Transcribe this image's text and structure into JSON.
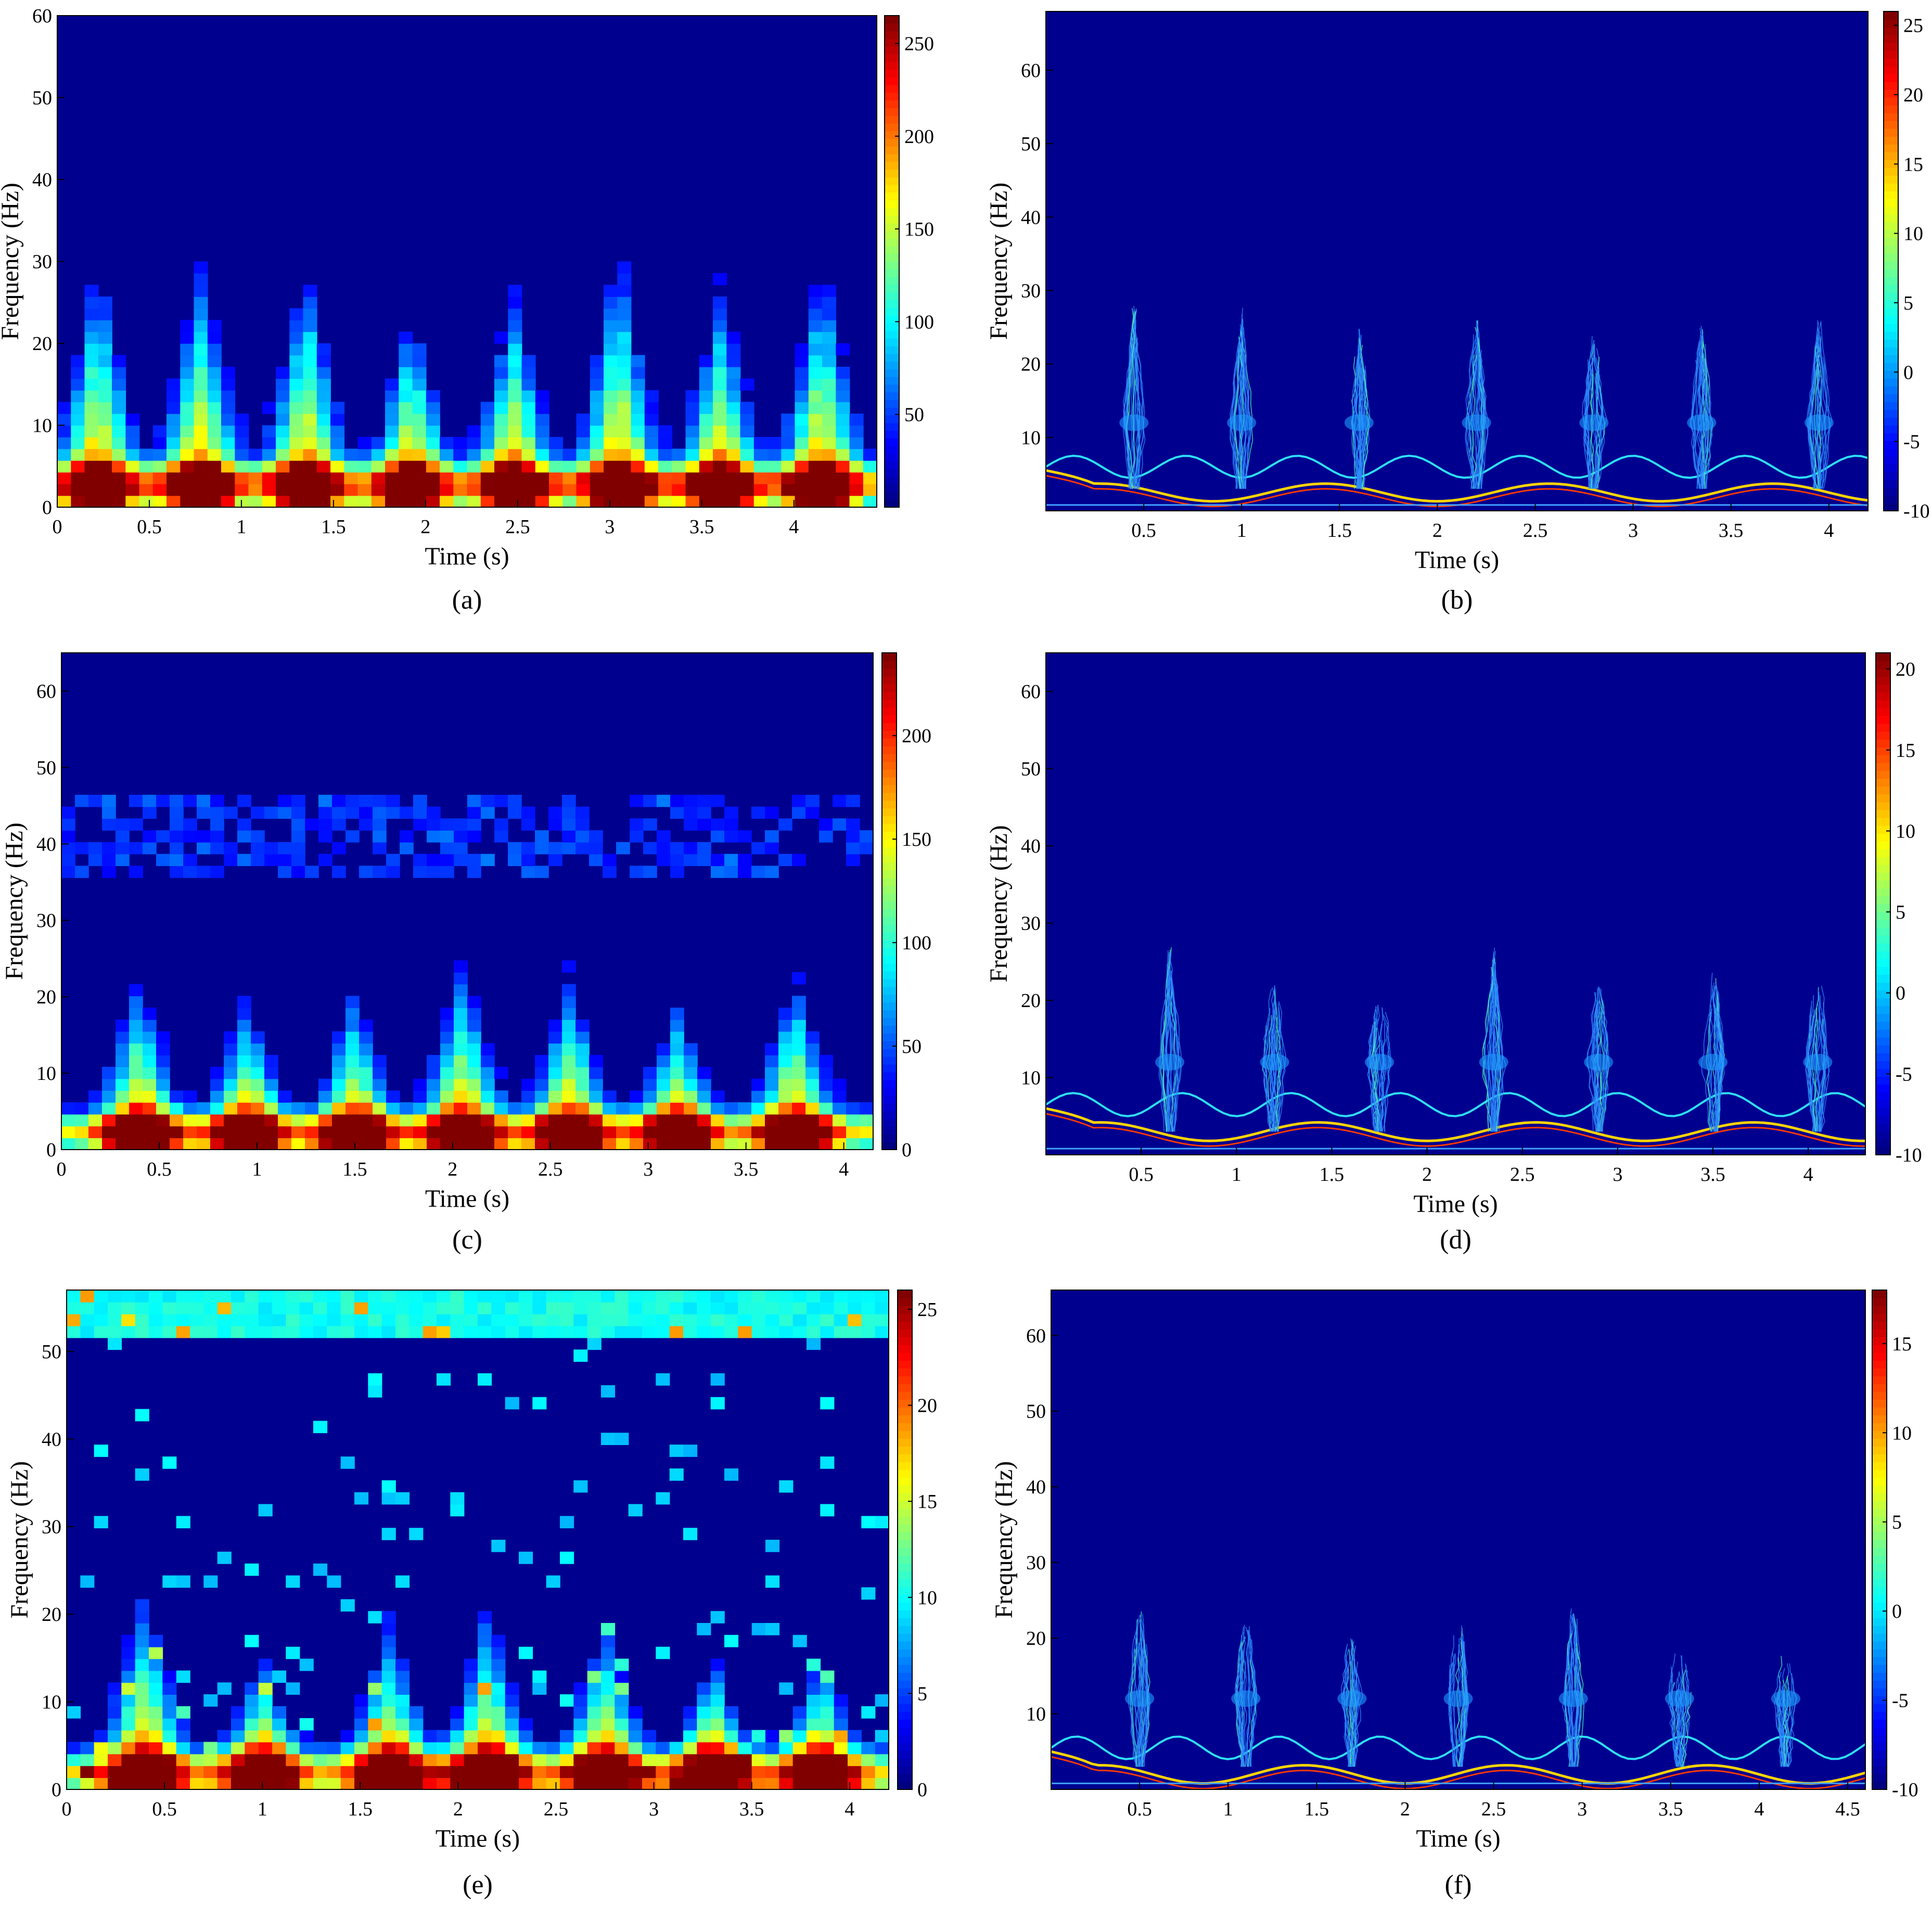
{
  "colors": {
    "colormap": "jet",
    "background": "#00008f",
    "axis": "#000000"
  },
  "chart_data": [
    {
      "id": "a",
      "type": "heatmap",
      "panel_label": "(a)",
      "style": "stft",
      "xlabel": "Time (s)",
      "ylabel": "Frequency (Hz)",
      "xlim": [
        0,
        4.45
      ],
      "ylim": [
        0,
        60
      ],
      "xticks": [
        "0",
        "0.5",
        "1",
        "1.5",
        "2",
        "2.5",
        "3",
        "3.5",
        "4"
      ],
      "yticks": [
        "0",
        "10",
        "20",
        "30",
        "40",
        "50",
        "60"
      ],
      "colorbar": {
        "min": 0,
        "max": 265,
        "ticks": [
          "50",
          "100",
          "150",
          "200",
          "250"
        ]
      },
      "pulse_times": [
        0.22,
        0.78,
        1.35,
        1.92,
        2.48,
        3.05,
        3.6,
        4.15
      ],
      "pulse_peak_freq": [
        28,
        28,
        28,
        22,
        24,
        30,
        24,
        28
      ],
      "baseline_freq": 3,
      "peak_value": 255
    },
    {
      "id": "b",
      "type": "heatmap",
      "panel_label": "(b)",
      "style": "sparse",
      "xlabel": "Time (s)",
      "ylabel": "Frequency (Hz)",
      "xlim": [
        0,
        4.2
      ],
      "ylim": [
        0,
        68
      ],
      "xticks": [
        "0.5",
        "1",
        "1.5",
        "2",
        "2.5",
        "3",
        "3.5",
        "4"
      ],
      "yticks": [
        "10",
        "20",
        "30",
        "40",
        "50",
        "60"
      ],
      "colorbar": {
        "min": -10,
        "max": 26,
        "ticks": [
          "-10",
          "-5",
          "0",
          "5",
          "10",
          "15",
          "20",
          "25"
        ]
      },
      "pulse_times": [
        0.45,
        1.0,
        1.6,
        2.2,
        2.8,
        3.35,
        3.95
      ],
      "pulse_peak_freq": [
        28,
        28,
        25,
        26,
        24,
        26,
        26
      ],
      "baseline_freq": 2.5,
      "peak_value": 25
    },
    {
      "id": "c",
      "type": "heatmap",
      "panel_label": "(c)",
      "style": "stft",
      "xlabel": "Time (s)",
      "ylabel": "Frequency (Hz)",
      "xlim": [
        0,
        4.15
      ],
      "ylim": [
        0,
        65
      ],
      "xticks": [
        "0",
        "0.5",
        "1",
        "1.5",
        "2",
        "2.5",
        "3",
        "3.5",
        "4"
      ],
      "yticks": [
        "0",
        "10",
        "20",
        "30",
        "40",
        "50",
        "60"
      ],
      "colorbar": {
        "min": 0,
        "max": 240,
        "ticks": [
          "0",
          "50",
          "100",
          "150",
          "200"
        ]
      },
      "pulse_times": [
        0.4,
        0.95,
        1.5,
        2.05,
        2.6,
        3.15,
        3.75
      ],
      "pulse_peak_freq": [
        20,
        17,
        18,
        22,
        20,
        16,
        20
      ],
      "baseline_freq": 2.5,
      "peak_value": 230
    },
    {
      "id": "d",
      "type": "heatmap",
      "panel_label": "(d)",
      "style": "sparse",
      "xlabel": "Time (s)",
      "ylabel": "Frequency (Hz)",
      "xlim": [
        0,
        4.3
      ],
      "ylim": [
        0,
        65
      ],
      "xticks": [
        "0.5",
        "1",
        "1.5",
        "2",
        "2.5",
        "3",
        "3.5",
        "4"
      ],
      "yticks": [
        "10",
        "20",
        "30",
        "40",
        "50",
        "60"
      ],
      "colorbar": {
        "min": -10,
        "max": 21,
        "ticks": [
          "-10",
          "-5",
          "0",
          "5",
          "10",
          "15",
          "20"
        ]
      },
      "pulse_times": [
        0.65,
        1.2,
        1.75,
        2.35,
        2.9,
        3.5,
        4.05
      ],
      "pulse_peak_freq": [
        27,
        22,
        20,
        27,
        22,
        24,
        22
      ],
      "baseline_freq": 3,
      "peak_value": 20
    },
    {
      "id": "e",
      "type": "heatmap",
      "panel_label": "(e)",
      "style": "stft",
      "xlabel": "Time (s)",
      "ylabel": "Frequency (Hz)",
      "xlim": [
        0,
        4.2
      ],
      "ylim": [
        0,
        57
      ],
      "xticks": [
        "0",
        "0.5",
        "1",
        "1.5",
        "2",
        "2.5",
        "3",
        "3.5",
        "4"
      ],
      "yticks": [
        "0",
        "10",
        "20",
        "30",
        "40",
        "50"
      ],
      "colorbar": {
        "min": 0,
        "max": 26,
        "ticks": [
          "0",
          "5",
          "10",
          "15",
          "20",
          "25"
        ]
      },
      "pulse_times": [
        0.4,
        1.0,
        1.65,
        2.15,
        2.75,
        3.3,
        3.85
      ],
      "pulse_peak_freq": [
        20,
        12,
        16,
        18,
        16,
        12,
        12
      ],
      "baseline_freq": 2,
      "peak_value": 25
    },
    {
      "id": "f",
      "type": "heatmap",
      "panel_label": "(f)",
      "style": "sparse",
      "xlabel": "Time (s)",
      "ylabel": "Frequency (Hz)",
      "xlim": [
        0,
        4.6
      ],
      "ylim": [
        0,
        66
      ],
      "xticks": [
        "0.5",
        "1",
        "1.5",
        "2",
        "2.5",
        "3",
        "3.5",
        "4",
        "4.5"
      ],
      "yticks": [
        "10",
        "20",
        "30",
        "40",
        "50",
        "60"
      ],
      "colorbar": {
        "min": -10,
        "max": 18,
        "ticks": [
          "-10",
          "-5",
          "0",
          "5",
          "10",
          "15"
        ]
      },
      "pulse_times": [
        0.5,
        1.1,
        1.7,
        2.3,
        2.95,
        3.55,
        4.15
      ],
      "pulse_peak_freq": [
        24,
        22,
        20,
        22,
        24,
        18,
        18
      ],
      "baseline_freq": 2,
      "peak_value": 15
    }
  ]
}
